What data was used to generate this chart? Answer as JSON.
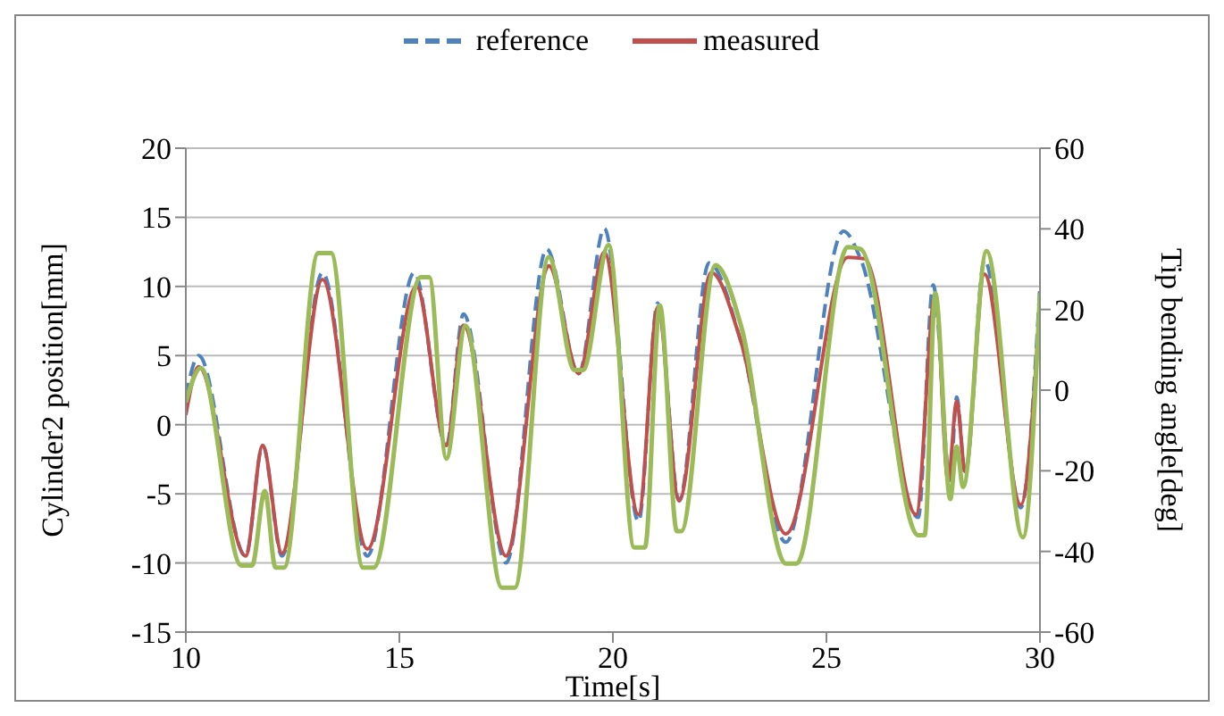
{
  "chart_data": {
    "type": "line",
    "xlabel": "Time[s]",
    "ylabel": "Cylinder2 position[mm]",
    "y2label": "Tip bending angle[deg]",
    "xlim": [
      10,
      30
    ],
    "xticks": [
      10,
      15,
      20,
      25,
      30
    ],
    "ylim": [
      -15,
      20
    ],
    "yticks": [
      -15,
      -10,
      -5,
      0,
      5,
      10,
      15,
      20
    ],
    "y2lim": [
      -60,
      60
    ],
    "y2ticks": [
      -60,
      -40,
      -20,
      0,
      20,
      40,
      60
    ],
    "grid": "y",
    "legend": "top",
    "marker": "none",
    "series": [
      {
        "name": "reference",
        "color": "#4f81bd",
        "line_style": "dashed",
        "x": [
          10,
          10.3,
          11.4,
          11.8,
          12.25,
          13.2,
          14.25,
          15.35,
          16.1,
          16.5,
          17.5,
          18.45,
          19.2,
          19.8,
          20.6,
          21.05,
          21.55,
          22.25,
          23,
          24.05,
          25.4,
          25.8,
          27.15,
          27.5,
          27.9,
          28.05,
          28.25,
          28.7,
          29.55,
          30
        ],
        "values": [
          2,
          5,
          -9.5,
          -1.5,
          -9.5,
          11,
          -9.5,
          11,
          -1.5,
          8,
          -10,
          12.7,
          3.7,
          14.2,
          -7,
          8.8,
          -5.5,
          11.7,
          6,
          -8.5,
          14,
          12,
          -6.7,
          10.1,
          -4,
          2,
          -3.5,
          11.9,
          -6,
          10
        ]
      },
      {
        "name": "measured",
        "color": "#c0504d",
        "line_style": "solid",
        "x": [
          10,
          10.3,
          11.4,
          11.8,
          12.25,
          13.2,
          14.25,
          15.4,
          16.1,
          16.5,
          17.5,
          18.5,
          19.2,
          19.8,
          20.6,
          21.05,
          21.55,
          22.3,
          23,
          24.05,
          25.5,
          25.9,
          27.1,
          27.55,
          27.85,
          28.05,
          28.25,
          28.7,
          29.55,
          30
        ],
        "values": [
          0.7,
          4.2,
          -9.5,
          -1.5,
          -9.3,
          10.5,
          -9,
          10,
          -1.5,
          7.2,
          -9.5,
          11.5,
          3.7,
          12.5,
          -6.5,
          8.5,
          -5.5,
          11,
          6,
          -7.9,
          12.1,
          12,
          -6.5,
          9.5,
          -4.1,
          1.7,
          -3.4,
          10.9,
          -5.8,
          8.6
        ]
      },
      {
        "color": "#9bbb59",
        "line_style": "solid",
        "axis": "y2",
        "x": [
          10,
          10.35,
          11.3,
          11.55,
          11.85,
          12.1,
          12.3,
          13.1,
          13.4,
          14.15,
          14.4,
          15.5,
          15.7,
          16.1,
          16.55,
          17.4,
          17.7,
          18.5,
          19.1,
          19.3,
          19.9,
          20.5,
          20.75,
          21.1,
          21.5,
          21.6,
          22.4,
          23,
          24.05,
          24.3,
          25.5,
          25.8,
          27.15,
          27.3,
          27.55,
          27.9,
          28.05,
          28.2,
          28.75,
          29.6,
          30
        ],
        "values": [
          -3,
          5.5,
          -43.5,
          -43.5,
          -25,
          -44,
          -44,
          34,
          34,
          -44,
          -44,
          28,
          28,
          -17,
          16,
          -49,
          -49,
          33,
          5,
          5,
          36,
          -39,
          -39,
          21,
          -35,
          -35,
          31,
          16,
          -43,
          -43,
          35.5,
          35,
          -36,
          -36,
          24,
          -27,
          -14,
          -24,
          34.5,
          -36.5,
          24
        ]
      }
    ]
  }
}
